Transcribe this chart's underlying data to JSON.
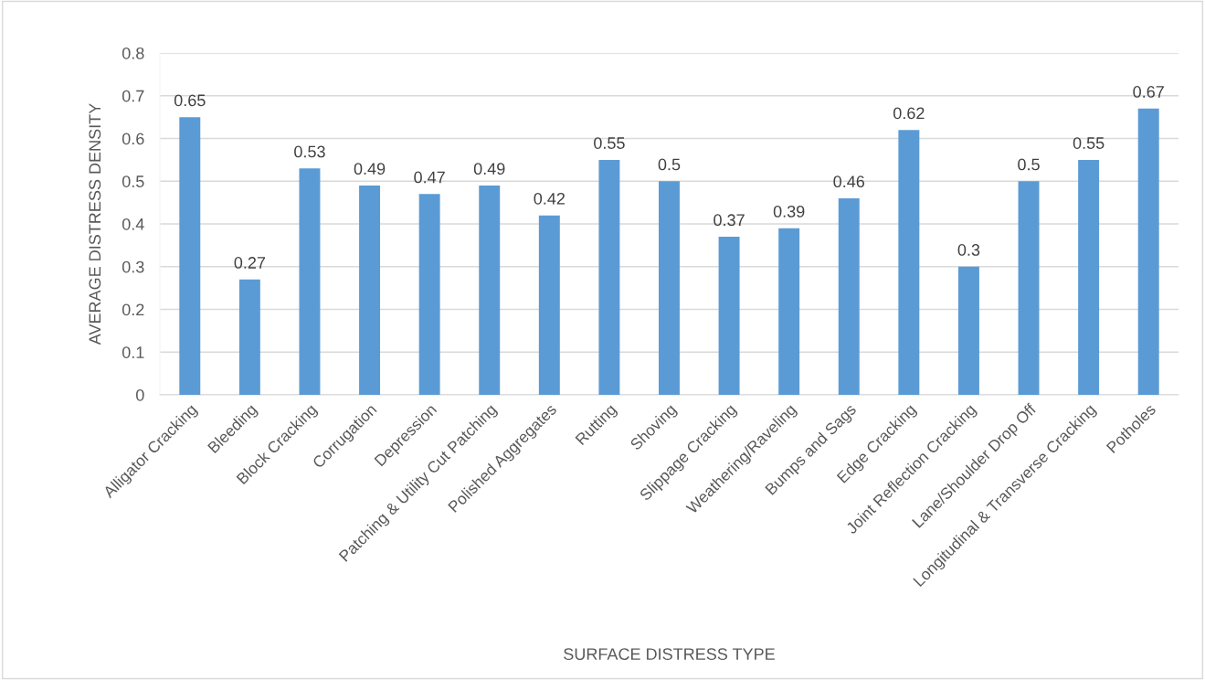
{
  "chart_data": {
    "type": "bar",
    "xlabel": "SURFACE DISTRESS TYPE",
    "ylabel": "AVERAGE DISTRESS DENSITY",
    "categories": [
      "Alligator Cracking",
      "Bleeding",
      "Block Cracking",
      "Corrugation",
      "Depression",
      "Patching & Utility Cut Patching",
      "Polished Aggregates",
      "Rutting",
      "Shoving",
      "Slippage Cracking",
      "Weathering/Raveling",
      "Bumps and Sags",
      "Edge Cracking",
      "Joint Reflection Cracking",
      "Lane/Shoulder Drop Off",
      "Longitudinal & Transverse Cracking",
      "Potholes"
    ],
    "values": [
      0.65,
      0.27,
      0.53,
      0.49,
      0.47,
      0.49,
      0.42,
      0.55,
      0.5,
      0.37,
      0.39,
      0.46,
      0.62,
      0.3,
      0.5,
      0.55,
      0.67
    ],
    "value_labels": [
      "0.65",
      "0.27",
      "0.53",
      "0.49",
      "0.47",
      "0.49",
      "0.42",
      "0.55",
      "0.5",
      "0.37",
      "0.39",
      "0.46",
      "0.62",
      "0.3",
      "0.5",
      "0.55",
      "0.67"
    ],
    "color": "#5b9bd5",
    "ylim": [
      0,
      0.8
    ],
    "yticks": [
      {
        "value": 0,
        "label": "0"
      },
      0.1,
      0.2,
      0.3,
      0.4,
      0.5,
      0.6,
      0.7,
      0.8
    ],
    "grid": "y",
    "legend": false
  }
}
